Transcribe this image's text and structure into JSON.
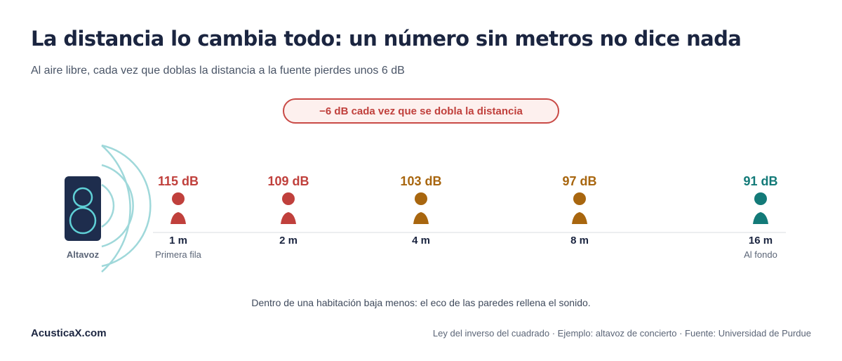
{
  "title": "La distancia lo cambia todo: un número sin metros no dice nada",
  "subtitle": "Al aire libre, cada vez que doblas la distancia a la fuente pierdes unos 6 dB",
  "rule_badge": "−6 dB cada vez que se dobla la distancia",
  "speaker": {
    "label": "Altavoz",
    "icon": "speaker-icon"
  },
  "points": [
    {
      "db": "115 dB",
      "distance": "1 m",
      "caption": "Primera fila",
      "color": "#c0403c"
    },
    {
      "db": "109 dB",
      "distance": "2 m",
      "caption": "",
      "color": "#c0403c"
    },
    {
      "db": "103 dB",
      "distance": "4 m",
      "caption": "",
      "color": "#a8660f"
    },
    {
      "db": "97 dB",
      "distance": "8 m",
      "caption": "",
      "color": "#a8660f"
    },
    {
      "db": "91 dB",
      "distance": "16 m",
      "caption": "Al fondo",
      "color": "#137a78"
    }
  ],
  "note": "Dentro de una habitación baja menos: el eco de las paredes rellena el sonido.",
  "footer": {
    "brand": "AcusticaX.com",
    "source": "Ley del inverso del cuadrado · Ejemplo: altavoz de concierto · Fuente: Universidad de Purdue"
  },
  "colors": {
    "wave": "#9fd8da",
    "speaker_body": "#1e2d4d",
    "speaker_ring": "#5fd0d6",
    "baseline": "#e6e8ec"
  }
}
